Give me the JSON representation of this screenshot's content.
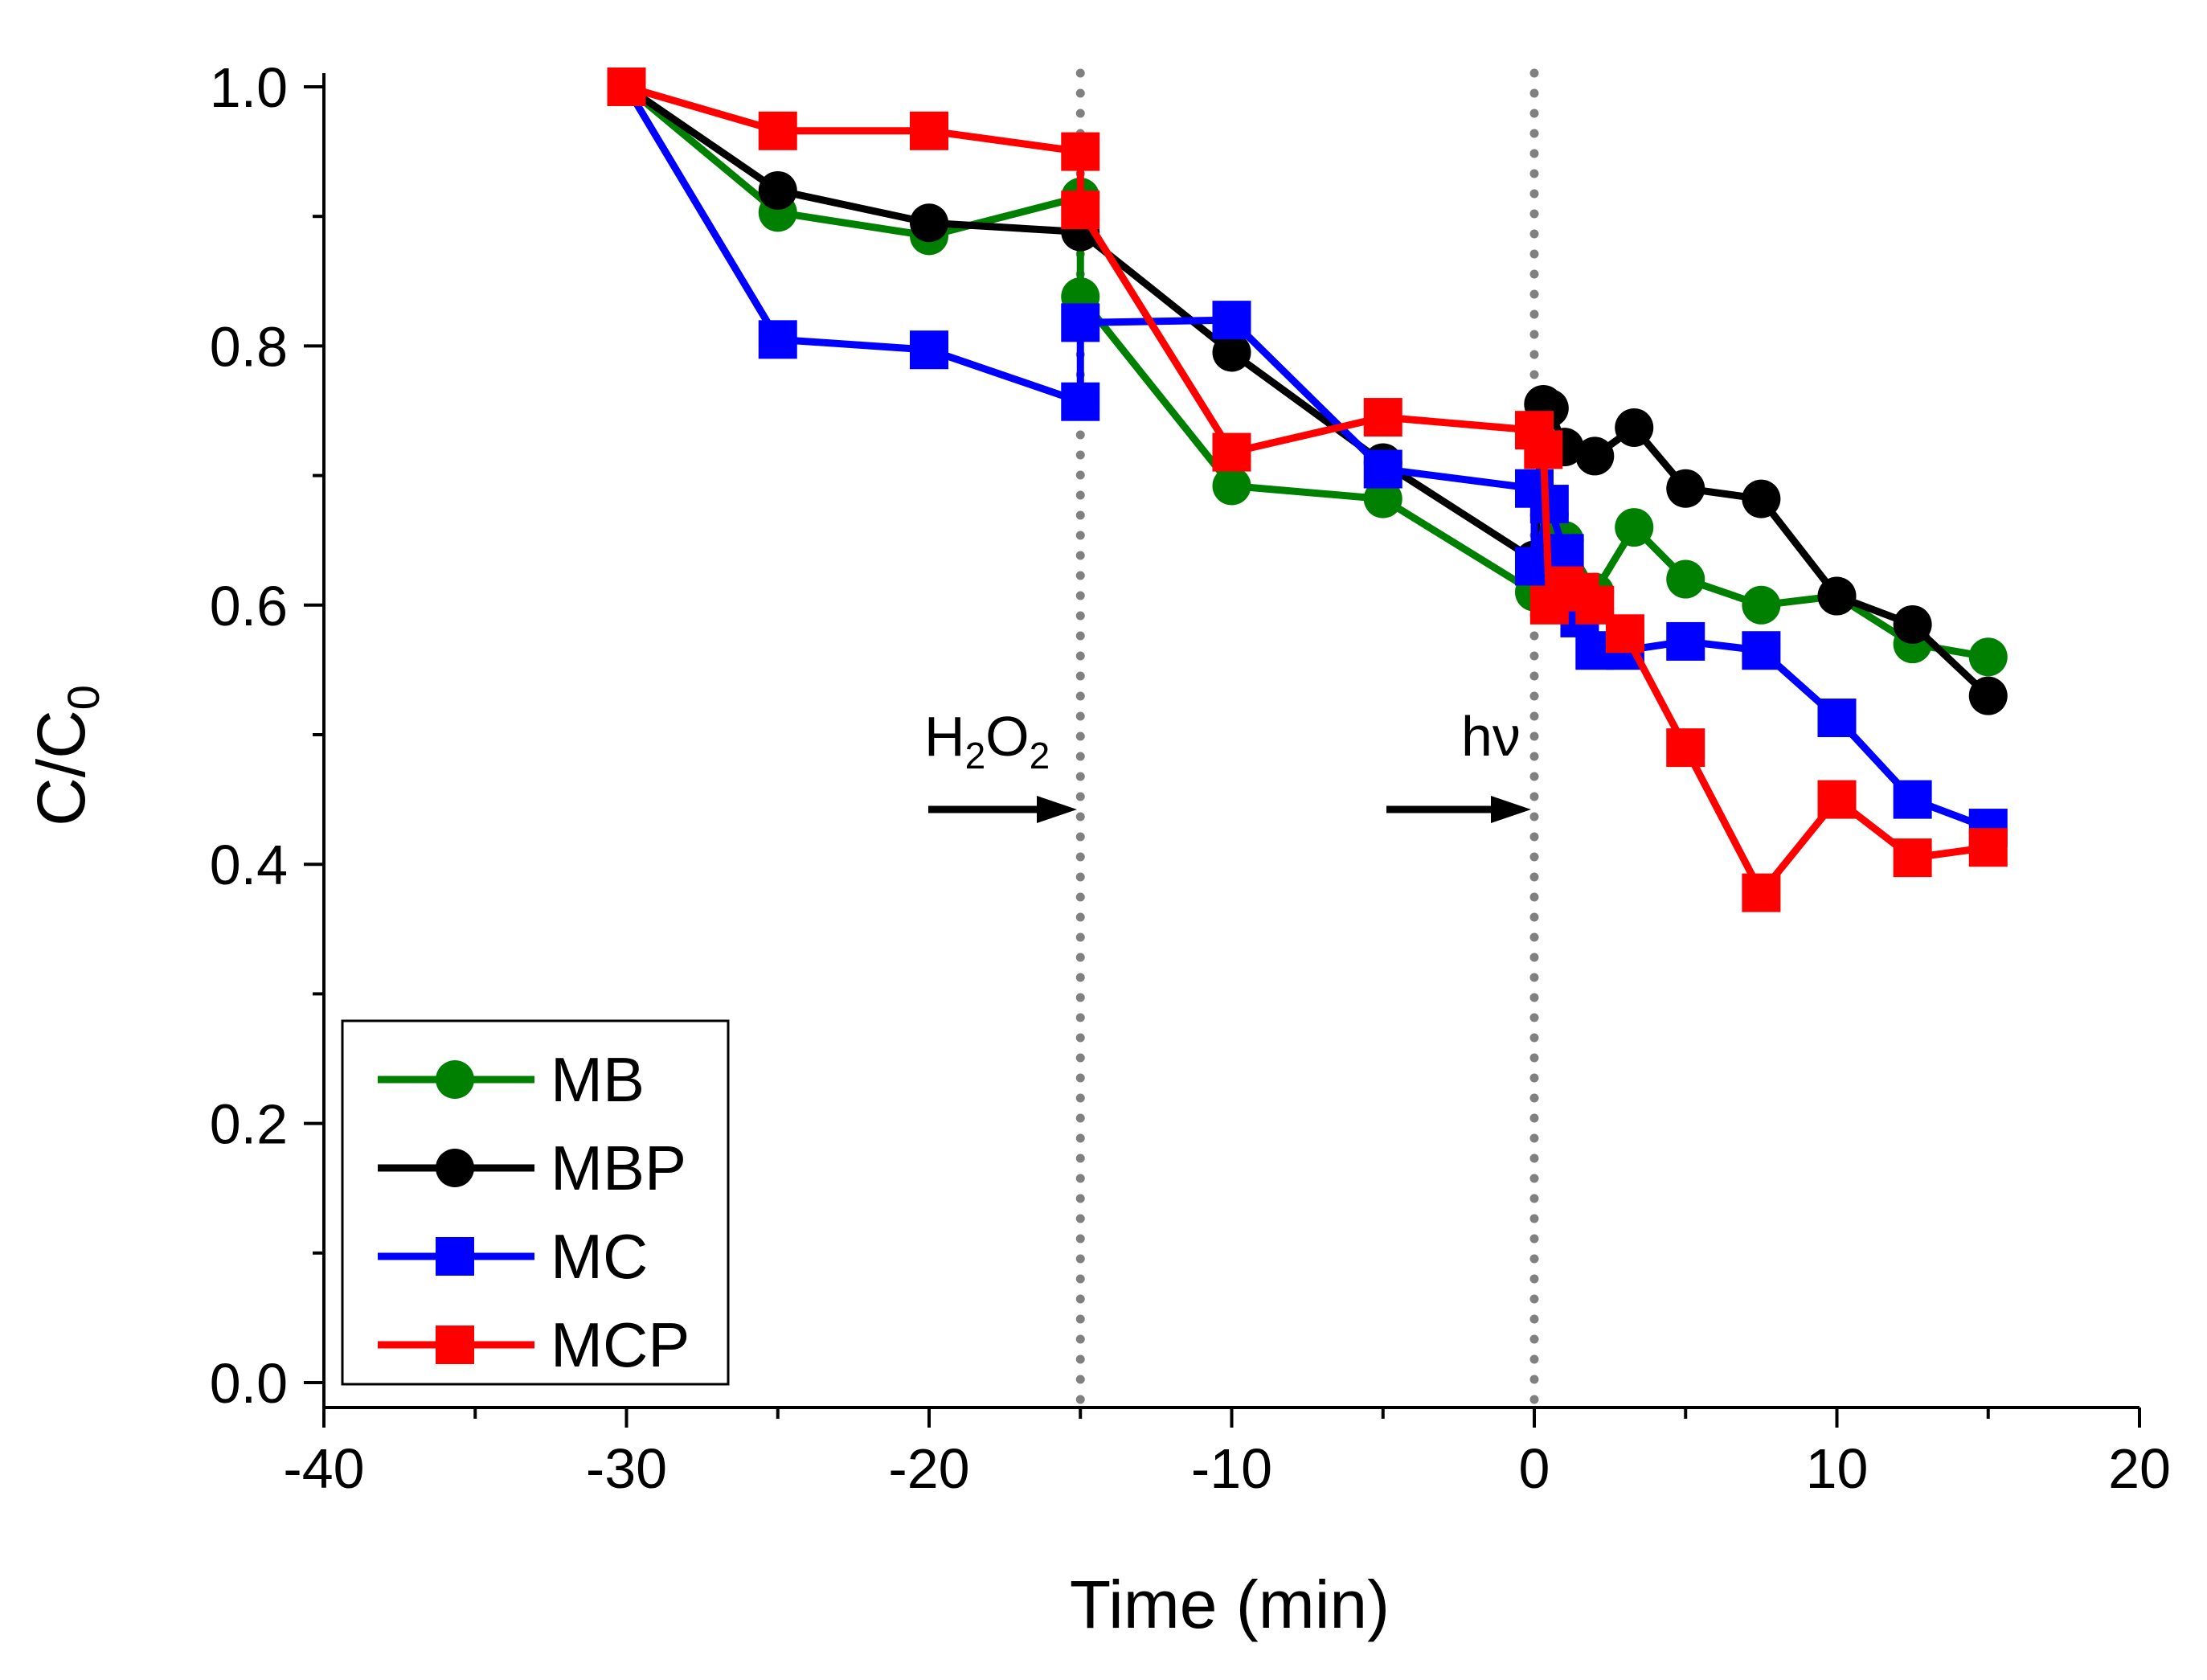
{
  "chart_data": {
    "type": "line",
    "title": "",
    "xlabel": "Time (min)",
    "ylabel": "C/C",
    "ylabel_sub": "0",
    "xlim": [
      -40,
      20
    ],
    "ylim": [
      0,
      1.0
    ],
    "xticks": [
      -40,
      -30,
      -20,
      -10,
      0,
      10,
      20
    ],
    "xtick_labels": [
      "-40",
      "-30",
      "-20",
      "-10",
      "0",
      "10",
      "20"
    ],
    "yticks": [
      0,
      0.2,
      0.4,
      0.6,
      0.8,
      1.0
    ],
    "ytick_labels": [
      "0.0",
      "0.2",
      "0.4",
      "0.6",
      "0.8",
      "1.0"
    ],
    "legend_position": "bottom-left",
    "annotations": [
      {
        "label": "H",
        "sub1": "2",
        "mid": "O",
        "sub2": "2",
        "x": -15
      },
      {
        "label": "hν",
        "x": 0
      }
    ],
    "series": [
      {
        "name": "MB",
        "color": "#008000",
        "marker": "circle",
        "x": [
          -30,
          -25,
          -20,
          -15,
          -15,
          -10,
          -5,
          0,
          0.5,
          1,
          2,
          3.3,
          5,
          7.5,
          10,
          12.5,
          15
        ],
        "y": [
          1.0,
          0.903,
          0.885,
          0.915,
          0.838,
          0.692,
          0.682,
          0.61,
          0.67,
          0.65,
          0.61,
          0.66,
          0.62,
          0.6,
          0.607,
          0.57,
          0.56
        ]
      },
      {
        "name": "MBP",
        "color": "#000000",
        "marker": "circle",
        "x": [
          -30,
          -25,
          -20,
          -15,
          -10,
          -5,
          0,
          0.3,
          0.5,
          1,
          2,
          3.3,
          5,
          7.5,
          10,
          12.5,
          15
        ],
        "y": [
          1.0,
          0.92,
          0.895,
          0.888,
          0.795,
          0.71,
          0.635,
          0.755,
          0.752,
          0.722,
          0.715,
          0.737,
          0.69,
          0.682,
          0.607,
          0.585,
          0.53
        ]
      },
      {
        "name": "MC",
        "color": "#0000ff",
        "marker": "square",
        "x": [
          -30,
          -25,
          -20,
          -15,
          -15,
          -10,
          -5,
          0,
          0,
          0.5,
          1,
          1.5,
          2,
          3,
          5,
          7.5,
          10,
          12.5,
          15
        ],
        "y": [
          1.0,
          0.805,
          0.797,
          0.757,
          0.818,
          0.82,
          0.705,
          0.69,
          0.63,
          0.678,
          0.64,
          0.59,
          0.565,
          0.565,
          0.572,
          0.565,
          0.513,
          0.45,
          0.428
        ]
      },
      {
        "name": "MCP",
        "color": "#ff0000",
        "marker": "square",
        "x": [
          -30,
          -25,
          -20,
          -15,
          -15,
          -10,
          -5,
          0,
          0.3,
          0.5,
          1,
          1.5,
          2,
          3,
          5,
          7.5,
          10,
          12.5,
          15
        ],
        "y": [
          1.0,
          0.966,
          0.966,
          0.95,
          0.905,
          0.718,
          0.745,
          0.735,
          0.72,
          0.6,
          0.615,
          0.61,
          0.6,
          0.578,
          0.49,
          0.378,
          0.45,
          0.405,
          0.413
        ]
      }
    ]
  }
}
